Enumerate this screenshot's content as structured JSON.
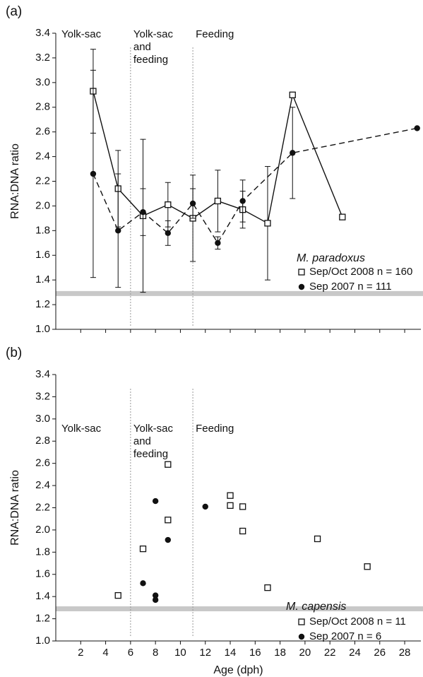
{
  "chart_data": [
    {
      "type": "line",
      "panel_label": "(a)",
      "y_label": "RNA:DNA ratio",
      "xlim": [
        0,
        29.3
      ],
      "xticks": [
        2,
        4,
        6,
        8,
        10,
        12,
        14,
        16,
        18,
        20,
        22,
        24,
        26,
        28
      ],
      "xtick_labels": false,
      "ylim": [
        1.0,
        3.4
      ],
      "yticks": [
        {
          "value": 1.0,
          "label": "1.0"
        },
        1.2,
        1.4,
        1.6,
        1.8,
        {
          "value": 2.0,
          "label": "2.0"
        },
        2.2,
        2.4,
        2.6,
        2.8,
        {
          "value": 3.0,
          "label": "3.0"
        },
        3.2,
        3.4
      ],
      "hline": 1.29,
      "vlines": [
        6,
        11
      ],
      "stage_labels": [
        [
          "Yolk-sac"
        ],
        [
          "Yolk-sac",
          "and",
          "feeding"
        ],
        [
          "Feeding"
        ]
      ],
      "legend_title": "M. paradoxus",
      "series": [
        {
          "name": "Sep/Oct 2008 n = 160",
          "color": "#111111",
          "marker": "square",
          "dashed": false,
          "x": [
            3,
            5,
            7,
            9,
            11,
            13,
            15,
            17,
            19,
            23
          ],
          "values": [
            2.93,
            2.14,
            1.92,
            2.01,
            1.9,
            2.04,
            1.97,
            1.86,
            2.9,
            1.91
          ],
          "errors": [
            0.34,
            0.31,
            0.62,
            0.18,
            0.35,
            0.25,
            0.15,
            0.46,
            null,
            null
          ]
        },
        {
          "name": "Sep 2007 n = 111",
          "color": "#111111",
          "marker": "circle",
          "dashed": true,
          "x": [
            3,
            5,
            7,
            9,
            11,
            13,
            15,
            19,
            29
          ],
          "values": [
            2.26,
            1.8,
            1.95,
            1.78,
            2.02,
            1.7,
            2.04,
            2.43,
            2.63
          ],
          "errors": [
            0.84,
            0.46,
            0.19,
            0.1,
            0.12,
            0.05,
            0.17,
            0.37,
            null
          ]
        }
      ]
    },
    {
      "type": "scatter",
      "panel_label": "(b)",
      "y_label": "RNA:DNA ratio",
      "x_label": "Age (dph)",
      "xlim": [
        0,
        29.3
      ],
      "xticks": [
        2,
        4,
        6,
        8,
        10,
        12,
        14,
        16,
        18,
        20,
        22,
        24,
        26,
        28
      ],
      "xtick_labels": true,
      "ylim": [
        1.0,
        3.4
      ],
      "yticks": [
        {
          "value": 1.0,
          "label": "1.0"
        },
        1.2,
        1.4,
        1.6,
        1.8,
        {
          "value": 2.0,
          "label": "2.0"
        },
        2.2,
        2.4,
        2.6,
        2.8,
        {
          "value": 3.0,
          "label": "3.0"
        },
        3.2,
        3.4
      ],
      "hline": 1.29,
      "vlines": [
        6,
        11
      ],
      "stage_labels": [
        [
          "Yolk-sac"
        ],
        [
          "Yolk-sac",
          "and",
          "feeding"
        ],
        [
          "Feeding"
        ]
      ],
      "legend_title": "M. capensis",
      "series": [
        {
          "name": "Sep/Oct 2008 n = 11",
          "color": "#111111",
          "marker": "square",
          "x": [
            5,
            7,
            9,
            9,
            14,
            14,
            15,
            15,
            17,
            21,
            25
          ],
          "values": [
            1.41,
            1.83,
            2.59,
            2.09,
            2.31,
            2.22,
            2.21,
            1.99,
            1.48,
            1.92,
            1.67
          ]
        },
        {
          "name": "Sep 2007 n = 6",
          "color": "#111111",
          "marker": "circle",
          "x": [
            7,
            8,
            8,
            8,
            9,
            12
          ],
          "values": [
            1.52,
            2.26,
            1.41,
            1.37,
            1.91,
            2.21
          ]
        }
      ]
    }
  ]
}
